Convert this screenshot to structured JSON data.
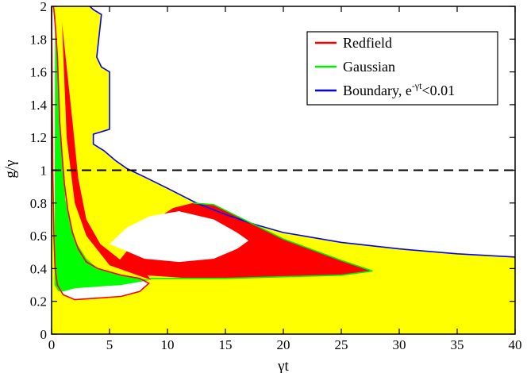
{
  "chart_data": {
    "type": "area",
    "title": "",
    "xlabel": "γt",
    "ylabel": "g/γ",
    "xlim": [
      0,
      40
    ],
    "ylim": [
      0,
      2
    ],
    "grid": false,
    "legend_position": "top-right",
    "x_ticks": [
      "0",
      "5",
      "10",
      "15",
      "20",
      "25",
      "30",
      "35",
      "40"
    ],
    "y_ticks": [
      "0",
      "0.2",
      "0.4",
      "0.6",
      "0.8",
      "1",
      "1.2",
      "1.4",
      "1.6",
      "1.8",
      "2"
    ],
    "x_tick_values": [
      0,
      5,
      10,
      15,
      20,
      25,
      30,
      35,
      40
    ],
    "y_tick_values": [
      0,
      0.2,
      0.4,
      0.6,
      0.8,
      1.0,
      1.2,
      1.4,
      1.6,
      1.8,
      2.0
    ],
    "legend": [
      {
        "label": "Redfield",
        "color": "#ff0000"
      },
      {
        "label": "Gaussian",
        "color": "#00ee00"
      },
      {
        "label": "Boundary, e",
        "superscript": "-γt",
        "suffix": "<0.01",
        "color": "#0000ff"
      }
    ],
    "reference_line": {
      "y": 1.0,
      "style": "dashed",
      "color": "#000000"
    },
    "fill_colors": {
      "yellow": "#ffff00",
      "red": "#ff0000",
      "green": "#00ff00",
      "white": "#ffffff"
    },
    "series": [
      {
        "name": "Boundary, e-γt<0.01",
        "color": "#0000ff",
        "x": [
          40.0,
          35.0,
          30.0,
          25.0,
          20.0,
          17.5,
          15.0,
          12.5,
          10.0,
          8.0,
          6.5,
          5.5,
          4.5,
          3.6,
          3.6,
          5.0,
          5.0,
          4.3,
          3.9,
          4.3,
          3.6,
          3.3
        ],
        "y": [
          0.47,
          0.49,
          0.52,
          0.56,
          0.62,
          0.67,
          0.73,
          0.8,
          0.89,
          0.96,
          1.01,
          1.06,
          1.12,
          1.16,
          1.22,
          1.25,
          1.6,
          1.63,
          1.69,
          1.95,
          1.98,
          2.0
        ]
      },
      {
        "name": "Redfield",
        "color": "#ff0000",
        "x": [
          0.0,
          0.1,
          0.2,
          0.3,
          0.5,
          1.0,
          2.0,
          4.0,
          6.0,
          7.6,
          8.4,
          7.6,
          6.0,
          4.0,
          3.0,
          2.3,
          1.8,
          1.4,
          1.1,
          0.9,
          0.7,
          0.6,
          0.5,
          0.3,
          0.2,
          0.15
        ],
        "y": [
          2.0,
          1.0,
          0.6,
          0.4,
          0.3,
          0.24,
          0.21,
          0.22,
          0.23,
          0.26,
          0.31,
          0.34,
          0.36,
          0.4,
          0.44,
          0.52,
          0.62,
          0.76,
          0.92,
          1.1,
          1.3,
          1.5,
          1.7,
          1.9,
          1.98,
          2.0
        ]
      },
      {
        "name": "Gaussian",
        "color": "#00ee00",
        "x": [
          8.5,
          10.0,
          15.0,
          20.0,
          25.0,
          27.7,
          25.0,
          20.0,
          16.0,
          14.0,
          12.2
        ],
        "y": [
          0.34,
          0.34,
          0.34,
          0.35,
          0.36,
          0.385,
          0.45,
          0.58,
          0.72,
          0.79,
          0.8
        ]
      }
    ]
  }
}
